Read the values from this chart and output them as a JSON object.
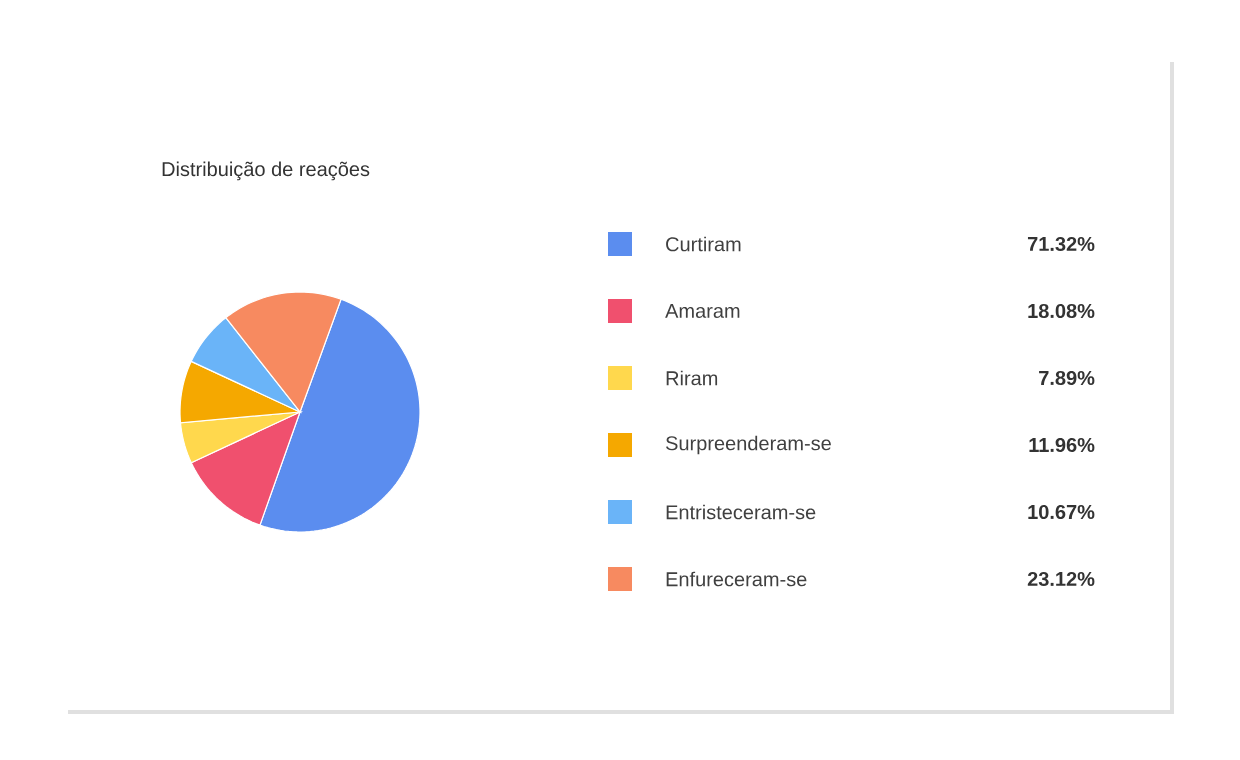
{
  "chart_data": {
    "type": "pie",
    "title": "Distribuição de reações",
    "categories": [
      "Curtiram",
      "Amaram",
      "Riram",
      "Surpreenderam-se",
      "Entristeceram-se",
      "Enfureceram-se"
    ],
    "values": [
      71.32,
      18.08,
      7.89,
      11.96,
      10.67,
      23.12
    ],
    "colors": [
      "#5b8def",
      "#f0506e",
      "#ffd84d",
      "#f5a800",
      "#6ab4f8",
      "#f78a60"
    ],
    "value_labels": [
      "71.32%",
      "18.08%",
      "7.89%",
      "11.96%",
      "10.67%",
      "23.12%"
    ],
    "legend": "right"
  }
}
